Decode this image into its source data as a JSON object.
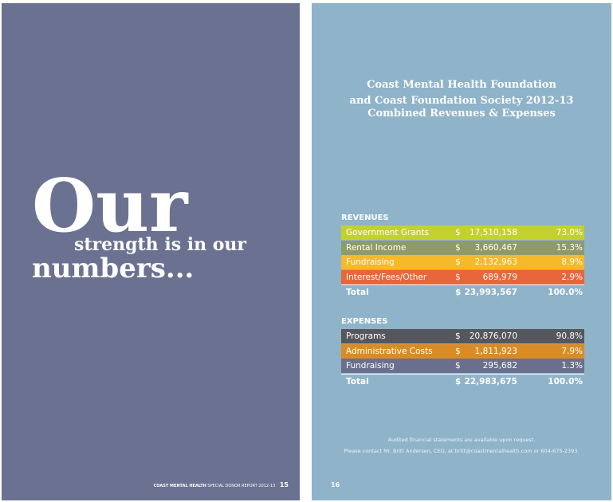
{
  "left_page": {
    "headline": [
      "Our",
      "strength is in our",
      "numbers..."
    ],
    "footer": {
      "brand": "COAST MENTAL HEALTH",
      "text": "SPECIAL DONOR REPORT 2012-13",
      "page": "15"
    }
  },
  "right_page": {
    "title": [
      "Coast Mental Health Foundation",
      "and Coast Foundation Society 2012-13",
      "Combined Revenues & Expenses"
    ],
    "tables": [
      {
        "heading": "REVENUES",
        "rows": [
          [
            "Government Grants",
            "$",
            "17,510,158",
            "73.0%"
          ],
          [
            "Rental Income",
            "$",
            "3,660,467",
            "15.3%"
          ],
          [
            "Fundraising",
            "$",
            "2,132,963",
            "8.9%"
          ],
          [
            "Interest/Fees/Other",
            "$",
            "689,979",
            "2.9%"
          ]
        ],
        "total": [
          "Total",
          "$",
          "23,993,567",
          "100.0%"
        ]
      },
      {
        "heading": "EXPENSES",
        "rows": [
          [
            "Programs",
            "$",
            "20,876,070",
            "90.8%"
          ],
          [
            "Administrative Costs",
            "$",
            "1,811,923",
            "7.9%"
          ],
          [
            "Fundraising",
            "$",
            "295,682",
            "1.3%"
          ]
        ],
        "total": [
          "Total",
          "$",
          "22,983,675",
          "100.0%"
        ]
      }
    ],
    "notes": [
      "Audited financial statements are available upon request.",
      "Please contact Mr. Britt Andersen, CEO, at britt@coastmentalhealth.com or 604-675-2393."
    ],
    "page": "16"
  }
}
